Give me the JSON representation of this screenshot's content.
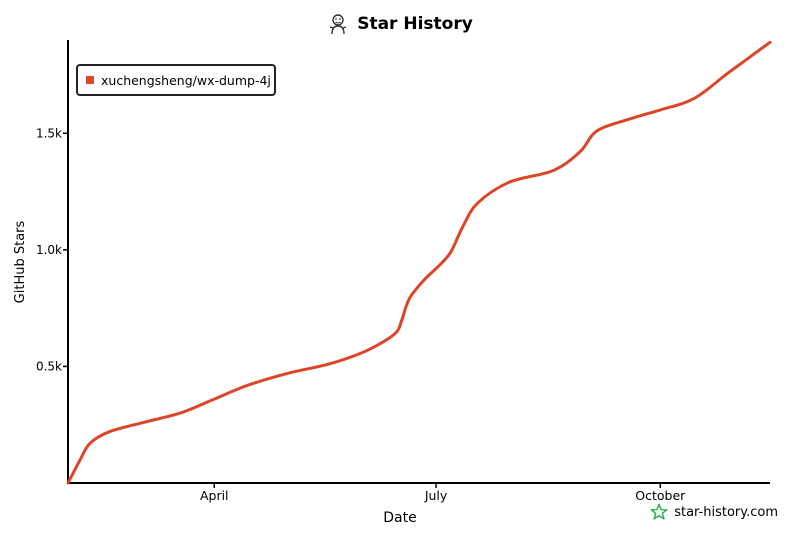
{
  "header": {
    "title": "Star History"
  },
  "colors": {
    "series": "#dd4528",
    "axis": "#000000",
    "brand_star": "#22b14c"
  },
  "legend": {
    "label": "xuchengsheng/wx-dump-4j"
  },
  "footer": {
    "brand": "star-history.com"
  },
  "chart_data": {
    "type": "line",
    "title": "Star History",
    "xlabel": "Date",
    "ylabel": "GitHub Stars",
    "x_ticks": [
      "April",
      "July",
      "October"
    ],
    "y_ticks": [
      "0.5k",
      "1.0k",
      "1.5k"
    ],
    "y_tick_values": [
      500,
      1000,
      1500
    ],
    "x_tick_dates": [
      "2024-04-01",
      "2024-07-01",
      "2024-10-01"
    ],
    "xlim": [
      "2024-02-01",
      "2024-11-15"
    ],
    "ylim": [
      0,
      1900
    ],
    "grid": false,
    "legend_position": "top-left",
    "series": [
      {
        "name": "xuchengsheng/wx-dump-4j",
        "color": "#dd4528",
        "points": [
          [
            "2024-02-01",
            0
          ],
          [
            "2024-02-03",
            40
          ],
          [
            "2024-02-06",
            100
          ],
          [
            "2024-02-10",
            170
          ],
          [
            "2024-02-18",
            220
          ],
          [
            "2024-03-03",
            260
          ],
          [
            "2024-03-18",
            300
          ],
          [
            "2024-04-01",
            360
          ],
          [
            "2024-04-15",
            420
          ],
          [
            "2024-05-01",
            470
          ],
          [
            "2024-05-18",
            510
          ],
          [
            "2024-06-01",
            560
          ],
          [
            "2024-06-10",
            610
          ],
          [
            "2024-06-15",
            650
          ],
          [
            "2024-06-17",
            700
          ],
          [
            "2024-06-20",
            790
          ],
          [
            "2024-06-26",
            870
          ],
          [
            "2024-07-02",
            930
          ],
          [
            "2024-07-07",
            990
          ],
          [
            "2024-07-12",
            1100
          ],
          [
            "2024-07-18",
            1200
          ],
          [
            "2024-07-31",
            1290
          ],
          [
            "2024-08-18",
            1340
          ],
          [
            "2024-08-29",
            1420
          ],
          [
            "2024-09-05",
            1510
          ],
          [
            "2024-09-18",
            1560
          ],
          [
            "2024-10-01",
            1600
          ],
          [
            "2024-10-15",
            1650
          ],
          [
            "2024-10-29",
            1760
          ],
          [
            "2024-11-15",
            1890
          ]
        ]
      }
    ]
  }
}
